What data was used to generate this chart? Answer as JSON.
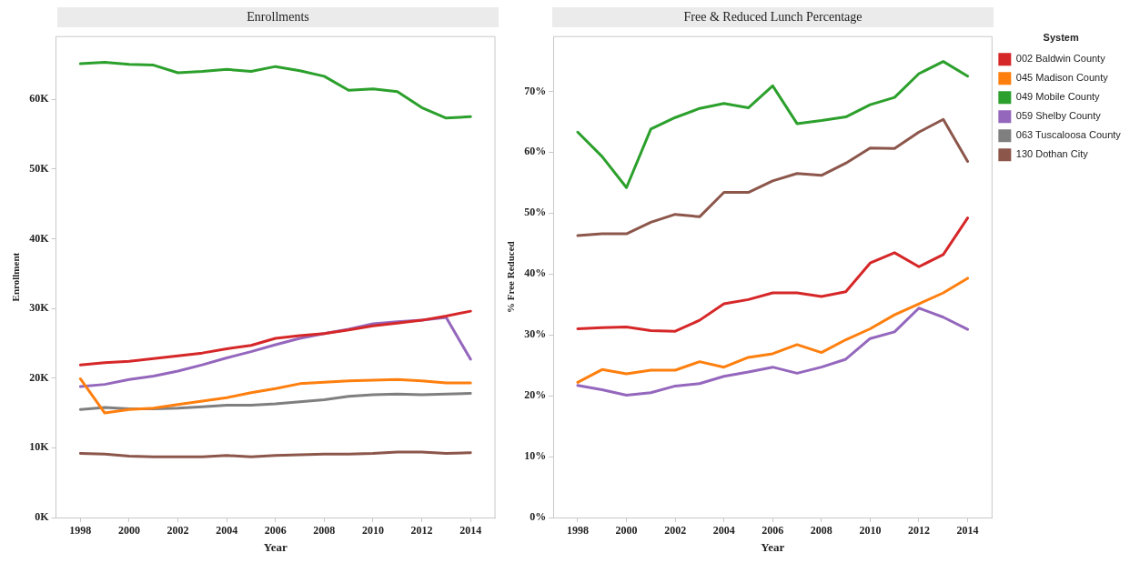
{
  "chart_data": [
    {
      "type": "line",
      "title": "Enrollments",
      "xlabel": "Year",
      "ylabel": "Enrollment",
      "x": [
        1998,
        1999,
        2000,
        2001,
        2002,
        2003,
        2004,
        2005,
        2006,
        2007,
        2008,
        2009,
        2010,
        2011,
        2012,
        2013,
        2014
      ],
      "xlim": [
        1997,
        2015
      ],
      "xticks": [
        1998,
        2000,
        2002,
        2004,
        2006,
        2008,
        2010,
        2012,
        2014
      ],
      "ylim": [
        0,
        69000
      ],
      "yticks": [
        {
          "value": 0,
          "label": "0K"
        },
        {
          "value": 10000,
          "label": "10K"
        },
        {
          "value": 20000,
          "label": "20K"
        },
        {
          "value": 30000,
          "label": "30K"
        },
        {
          "value": 40000,
          "label": "40K"
        },
        {
          "value": 50000,
          "label": "50K"
        },
        {
          "value": 60000,
          "label": "60K"
        }
      ],
      "grid": false,
      "legend": false,
      "marker": "none",
      "line_style": "solid",
      "series": [
        {
          "color": "#d62728",
          "values": [
            21900,
            22200,
            22400,
            22800,
            23200,
            23600,
            24200,
            24700,
            25700,
            26100,
            26400,
            26900,
            27500,
            27900,
            28300,
            28900,
            29600
          ]
        },
        {
          "color": "#ff7f0e",
          "values": [
            19900,
            15000,
            15500,
            15700,
            16200,
            16700,
            17200,
            17900,
            18500,
            19200,
            19400,
            19600,
            19700,
            19800,
            19600,
            19300,
            19300
          ]
        },
        {
          "color": "#2ca02c",
          "values": [
            65100,
            65300,
            65000,
            64900,
            63800,
            64000,
            64300,
            64000,
            64700,
            64100,
            63300,
            61300,
            61500,
            61100,
            58800,
            57300,
            57500
          ]
        },
        {
          "color": "#9467bd",
          "values": [
            18800,
            19100,
            19800,
            20300,
            21000,
            21900,
            22900,
            23800,
            24800,
            25700,
            26400,
            27000,
            27800,
            28100,
            28300,
            28700,
            22700
          ]
        },
        {
          "color": "#7f7f7f",
          "values": [
            15500,
            15800,
            15600,
            15600,
            15700,
            15900,
            16100,
            16100,
            16300,
            16600,
            16900,
            17400,
            17600,
            17700,
            17600,
            17700,
            17800
          ]
        },
        {
          "color": "#8c564b",
          "values": [
            9200,
            9100,
            8800,
            8700,
            8700,
            8700,
            8900,
            8700,
            8900,
            9000,
            9100,
            9100,
            9200,
            9400,
            9400,
            9200,
            9300
          ]
        }
      ]
    },
    {
      "type": "line",
      "title": "Free & Reduced Lunch Percentage",
      "xlabel": "Year",
      "ylabel": "% Free Reduced",
      "legend_title": "System",
      "x": [
        1998,
        1999,
        2000,
        2001,
        2002,
        2003,
        2004,
        2005,
        2006,
        2007,
        2008,
        2009,
        2010,
        2011,
        2012,
        2013,
        2014
      ],
      "xlim": [
        1997,
        2015
      ],
      "xticks": [
        1998,
        2000,
        2002,
        2004,
        2006,
        2008,
        2010,
        2012,
        2014
      ],
      "ylim": [
        0,
        79
      ],
      "yticks": [
        {
          "value": 0,
          "label": "0%"
        },
        {
          "value": 10,
          "label": "10%"
        },
        {
          "value": 20,
          "label": "20%"
        },
        {
          "value": 30,
          "label": "30%"
        },
        {
          "value": 40,
          "label": "40%"
        },
        {
          "value": 50,
          "label": "50%"
        },
        {
          "value": 60,
          "label": "60%"
        },
        {
          "value": 70,
          "label": "70%"
        }
      ],
      "grid": false,
      "legend": "right",
      "marker": "none",
      "line_style": "solid",
      "series": [
        {
          "name": "002 Baldwin County",
          "color": "#d62728",
          "values": [
            31.0,
            31.2,
            31.3,
            30.7,
            30.6,
            32.4,
            35.1,
            35.8,
            36.9,
            36.9,
            36.3,
            37.1,
            41.8,
            43.5,
            41.2,
            43.2,
            49.2
          ]
        },
        {
          "name": "045 Madison County",
          "color": "#ff7f0e",
          "values": [
            22.2,
            24.3,
            23.6,
            24.2,
            24.2,
            25.6,
            24.7,
            26.3,
            26.9,
            28.4,
            27.1,
            29.2,
            31.0,
            33.3,
            35.1,
            36.9,
            39.3
          ]
        },
        {
          "name": "049 Mobile County",
          "color": "#2ca02c",
          "values": [
            63.3,
            59.3,
            54.2,
            63.8,
            65.7,
            67.2,
            68.0,
            67.3,
            70.9,
            64.7,
            65.2,
            65.8,
            67.8,
            69.0,
            72.9,
            74.9,
            72.5
          ]
        },
        {
          "name": "059 Shelby County",
          "color": "#9467bd",
          "values": [
            21.7,
            21.0,
            20.1,
            20.5,
            21.6,
            22.0,
            23.2,
            23.9,
            24.7,
            23.7,
            24.7,
            26.0,
            29.4,
            30.5,
            34.4,
            32.9,
            30.9
          ]
        },
        {
          "name": "063 Tuscaloosa County",
          "color": "#7f7f7f",
          "values": [
            null,
            null,
            null,
            null,
            null,
            null,
            null,
            null,
            null,
            null,
            null,
            null,
            null,
            null,
            null,
            null,
            null
          ]
        },
        {
          "name": "130 Dothan City",
          "color": "#8c564b",
          "values": [
            46.3,
            46.6,
            46.6,
            48.5,
            49.8,
            49.4,
            53.4,
            53.4,
            55.3,
            56.5,
            56.2,
            58.2,
            60.7,
            60.6,
            63.3,
            65.4,
            58.5
          ]
        }
      ]
    }
  ]
}
